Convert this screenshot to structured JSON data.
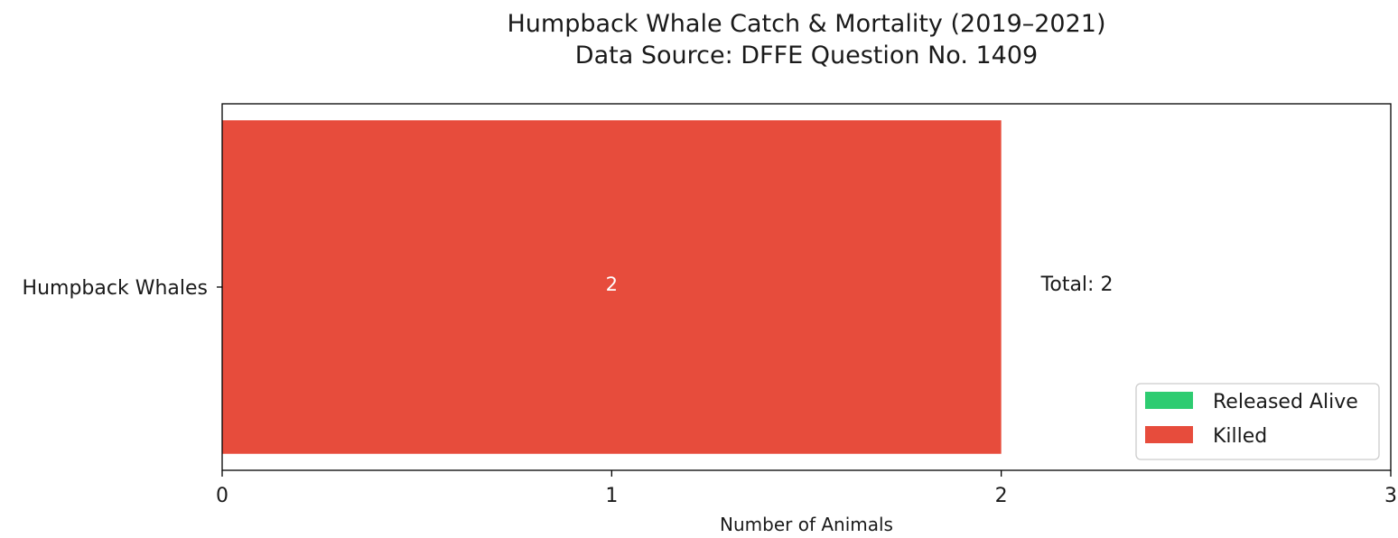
{
  "chart_data": {
    "type": "bar",
    "orientation": "horizontal",
    "stacked": true,
    "title": "Humpback Whale Catch & Mortality (2019–2021)",
    "subtitle": "Data Source: DFFE Question No. 1409",
    "xlabel": "Number of Animals",
    "ylabel": "",
    "xlim": [
      0,
      3
    ],
    "x_ticks": [
      "0",
      "1",
      "2",
      "3"
    ],
    "categories": [
      "Humpback Whales"
    ],
    "series": [
      {
        "name": "Released Alive",
        "values": [
          0
        ],
        "color": "#2ecc71"
      },
      {
        "name": "Killed",
        "values": [
          2
        ],
        "color": "#e74c3c"
      }
    ],
    "bar_labels": [
      "2"
    ],
    "totals": [
      "Total: 2"
    ],
    "grid": false,
    "legend_position": "lower-right"
  }
}
